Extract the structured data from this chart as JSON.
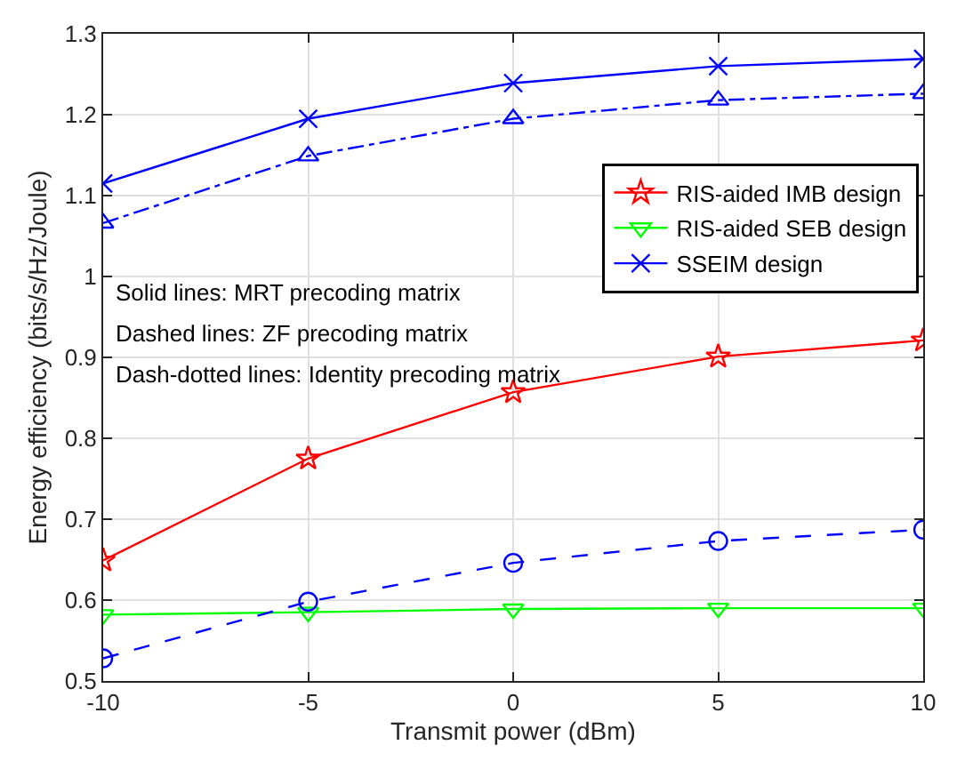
{
  "chart_data": {
    "type": "line",
    "xlabel": "Transmit power (dBm)",
    "ylabel": "Energy efficiency (bits/s/Hz/Joule)",
    "x": [
      -10,
      -5,
      0,
      5,
      10
    ],
    "series": [
      {
        "name": "RIS-aided IMB design",
        "color": "#ff0000",
        "marker": "star",
        "line_style": "solid",
        "values": [
          0.649,
          0.775,
          0.857,
          0.901,
          0.921
        ]
      },
      {
        "name": "RIS-aided SEB design",
        "color": "#00ff00",
        "marker": "triangle-down",
        "line_style": "solid",
        "values": [
          0.582,
          0.585,
          0.589,
          0.59,
          0.59
        ]
      },
      {
        "name": "SSEIM design",
        "color": "#0000ff",
        "marker": "cross",
        "line_style": "solid",
        "values": [
          1.115,
          1.195,
          1.239,
          1.26,
          1.269
        ]
      },
      {
        "color": "#0000ff",
        "marker": "circle",
        "line_style": "dashed",
        "values": [
          0.528,
          0.598,
          0.646,
          0.673,
          0.687
        ]
      },
      {
        "color": "#0000ff",
        "marker": "triangle",
        "line_style": "dashdot",
        "values": [
          1.066,
          1.149,
          1.195,
          1.218,
          1.226
        ]
      }
    ],
    "xlim": [
      -10,
      10
    ],
    "xticks": [
      -10,
      -5,
      0,
      5,
      10
    ],
    "ylim": [
      0.5,
      1.3
    ],
    "yticks": [
      0.5,
      0.6,
      0.7,
      0.8,
      0.9,
      1,
      1.1,
      1.2,
      1.3
    ],
    "grid": true,
    "legend": "top right",
    "annotations": [
      "Solid lines: MRT precoding matrix",
      "Dashed lines: ZF precoding matrix",
      "Dash-dotted lines: Identity precoding matrix"
    ]
  }
}
